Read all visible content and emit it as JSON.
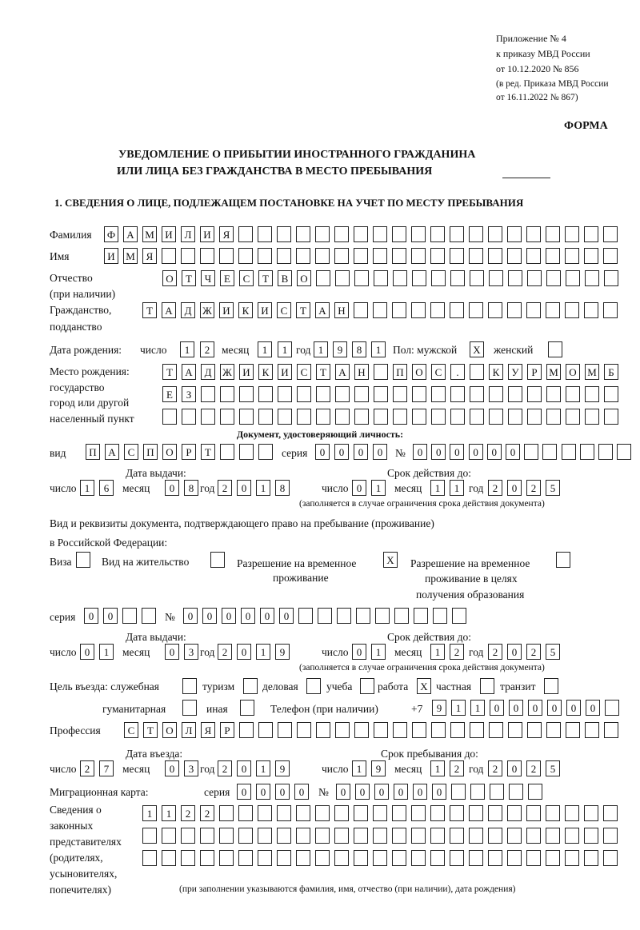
{
  "header": {
    "appendix": "Приложение № 4",
    "order": "к приказу МВД России",
    "order_date": "от 10.12.2020 № 856",
    "edition1": "(в ред. Приказа МВД России",
    "edition2": "от 16.11.2022 № 867)",
    "form": "ФОРМА"
  },
  "title": {
    "line1": "УВЕДОМЛЕНИЕ О ПРИБЫТИИ ИНОСТРАННОГО ГРАЖДАНИНА",
    "line2": "ИЛИ ЛИЦА БЕЗ ГРАЖДАНСТВА В МЕСТО ПРЕБЫВАНИЯ"
  },
  "section1": "1. СВЕДЕНИЯ О ЛИЦЕ, ПОДЛЕЖАЩЕМ ПОСТАНОВКЕ НА УЧЕТ ПО МЕСТУ ПРЕБЫВАНИЯ",
  "labels": {
    "surname": "Фамилия",
    "name": "Имя",
    "patronymic1": "Отчество",
    "patronymic2": "(при наличии)",
    "citizenship1": "Гражданство,",
    "citizenship2": "подданство",
    "dob": "Дата рождения:",
    "day": "число",
    "month": "месяц",
    "year": "год",
    "sex_male": "Пол: мужской",
    "sex_female": "женский",
    "pob1": "Место рождения:",
    "pob2": "государство",
    "pob3": "город или другой",
    "pob4": "населенный пункт",
    "id_doc": "Документ, удостоверяющий личность:",
    "kind": "вид",
    "series": "серия",
    "number": "№",
    "issue_date": "Дата выдачи:",
    "valid_until": "Срок действия до:",
    "validity_note": "(заполняется в случае ограничения срока действия документа)",
    "stay_doc1": "Вид и реквизиты документа, подтверждающего право на пребывание (проживание)",
    "stay_doc2": "в Российской Федерации:",
    "visa": "Виза",
    "residence_permit": "Вид на жительство",
    "temp_residence1": "Разрешение на временное",
    "temp_residence2": "проживание",
    "temp_edu1": "Разрешение на временное",
    "temp_edu2": "проживание в целях",
    "temp_edu3": "получения образования",
    "purpose": "Цель въезда: служебная",
    "tourism": "туризм",
    "business": "деловая",
    "study": "учеба",
    "work": "работа",
    "private": "частная",
    "transit": "транзит",
    "humanitarian": "гуманитарная",
    "other": "иная",
    "phone": "Телефон (при наличии)",
    "phone_prefix": "+7",
    "profession": "Профессия",
    "entry_date": "Дата въезда:",
    "stay_until": "Срок пребывания до:",
    "migration_card": "Миграционная карта:",
    "legal1": "Сведения о",
    "legal2": "законных",
    "legal3": "представителях",
    "legal4": "(родителях,",
    "legal5": "усыновителях,",
    "legal6": "попечителях)",
    "legal_note": "(при заполнении указываются фамилия, имя, отчество (при наличии), дата рождения)"
  },
  "values": {
    "surname": "ФАМИЛИЯ",
    "name": "ИМЯ",
    "patronymic": "ОТЧЕСТВО",
    "citizenship": "ТАДЖИКИСТАН",
    "dob": {
      "day": "12",
      "month": "11",
      "year": "1981"
    },
    "sex": {
      "male": "X",
      "female": ""
    },
    "pob_line1": "ТАДЖИКИСТАН ПОС. КУРМОМБ",
    "pob_line2": "ЕЗ",
    "pob_line3": "",
    "id_kind": "ПАСПОРТ",
    "id_series": "0000",
    "id_number": "000000",
    "id_issue": {
      "day": "16",
      "month": "08",
      "year": "2018"
    },
    "id_valid": {
      "day": "01",
      "month": "11",
      "year": "2025"
    },
    "stay_doc_type": {
      "visa": "",
      "residence_permit": "",
      "temp_residence": "X",
      "temp_edu": ""
    },
    "stay_series": "00",
    "stay_number": "000000",
    "stay_issue": {
      "day": "01",
      "month": "03",
      "year": "2019"
    },
    "stay_valid": {
      "day": "01",
      "month": "12",
      "year": "2025"
    },
    "purpose": {
      "service": "",
      "tourism": "",
      "business": "",
      "study": "",
      "work": "X",
      "private": "",
      "transit": "",
      "humanitarian": "",
      "other": ""
    },
    "phone": "911000000",
    "profession": "СТОЛЯР",
    "entry": {
      "day": "27",
      "month": "03",
      "year": "2019"
    },
    "stay_until": {
      "day": "19",
      "month": "12",
      "year": "2025"
    },
    "mc_series": "0000",
    "mc_number": "000000",
    "legal_line1": "1122",
    "legal_line2": "",
    "legal_line3": ""
  }
}
